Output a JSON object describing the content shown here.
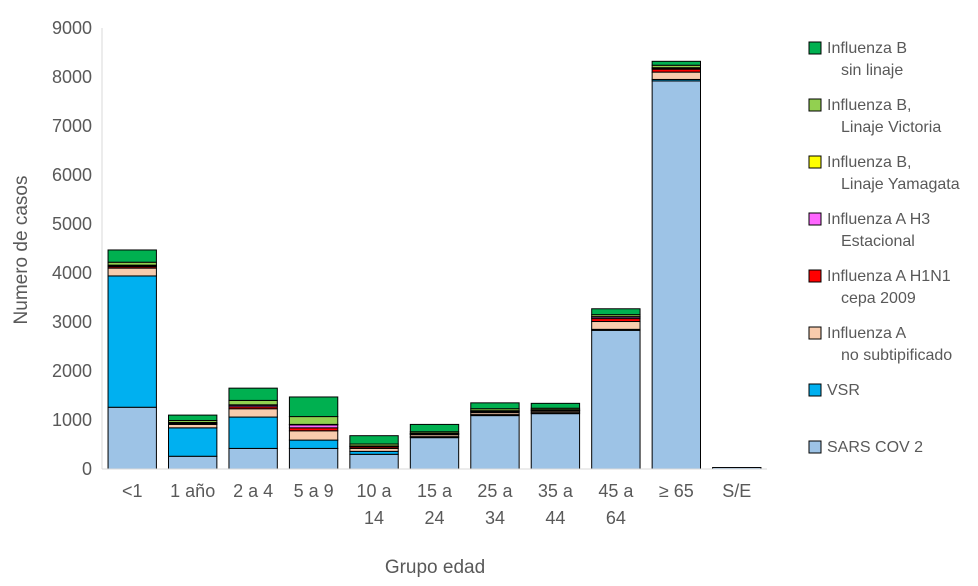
{
  "chart_data": {
    "type": "bar",
    "stacked": true,
    "title": "",
    "xlabel": "Grupo edad",
    "ylabel": "Numero de casos",
    "ylim": [
      0,
      9000
    ],
    "yticks": [
      "0",
      "1000",
      "2000",
      "3000",
      "4000",
      "5000",
      "6000",
      "7000",
      "8000",
      "9000"
    ],
    "grid": false,
    "legend_position": "right",
    "categories": [
      [
        "<1"
      ],
      [
        "1 año"
      ],
      [
        "2 a 4"
      ],
      [
        "5 a 9"
      ],
      [
        "10 a",
        "14"
      ],
      [
        "15 a",
        "24"
      ],
      [
        "25 a",
        "34"
      ],
      [
        "35 a",
        "44"
      ],
      [
        "45 a",
        "64"
      ],
      [
        "≥ 65"
      ],
      [
        "S/E"
      ]
    ],
    "series": [
      {
        "name": [
          "SARS COV 2"
        ],
        "color": "#9DC3E6",
        "values": [
          1260,
          260,
          420,
          420,
          300,
          640,
          1090,
          1130,
          2830,
          7920,
          30
        ]
      },
      {
        "name": [
          "VSR"
        ],
        "color": "#00B0F0",
        "values": [
          2680,
          580,
          640,
          170,
          60,
          20,
          20,
          20,
          20,
          30,
          0
        ]
      },
      {
        "name": [
          "Influenza A",
          "no subtipificado"
        ],
        "color": "#F8CBAD",
        "values": [
          160,
          70,
          170,
          190,
          60,
          40,
          40,
          30,
          160,
          150,
          0
        ]
      },
      {
        "name": [
          "Influenza A H1N1",
          "cepa 2009"
        ],
        "color": "#FF0000",
        "values": [
          30,
          20,
          40,
          60,
          30,
          10,
          20,
          10,
          60,
          60,
          0
        ]
      },
      {
        "name": [
          "Influenza A H3",
          "Estacional"
        ],
        "color": "#FF66FF",
        "values": [
          20,
          10,
          30,
          60,
          10,
          10,
          10,
          10,
          30,
          20,
          0
        ]
      },
      {
        "name": [
          "Influenza B,",
          "Linaje Yamagata"
        ],
        "color": "#FFFF00",
        "values": [
          10,
          10,
          10,
          10,
          10,
          10,
          10,
          10,
          10,
          10,
          0
        ]
      },
      {
        "name": [
          "Influenza B,",
          "Linaje Victoria"
        ],
        "color": "#92D050",
        "values": [
          60,
          40,
          90,
          160,
          40,
          30,
          40,
          30,
          40,
          50,
          0
        ]
      },
      {
        "name": [
          "Influenza B",
          "sin linaje"
        ],
        "color": "#00B050",
        "values": [
          250,
          110,
          250,
          400,
          170,
          150,
          120,
          100,
          120,
          80,
          0
        ]
      }
    ]
  }
}
